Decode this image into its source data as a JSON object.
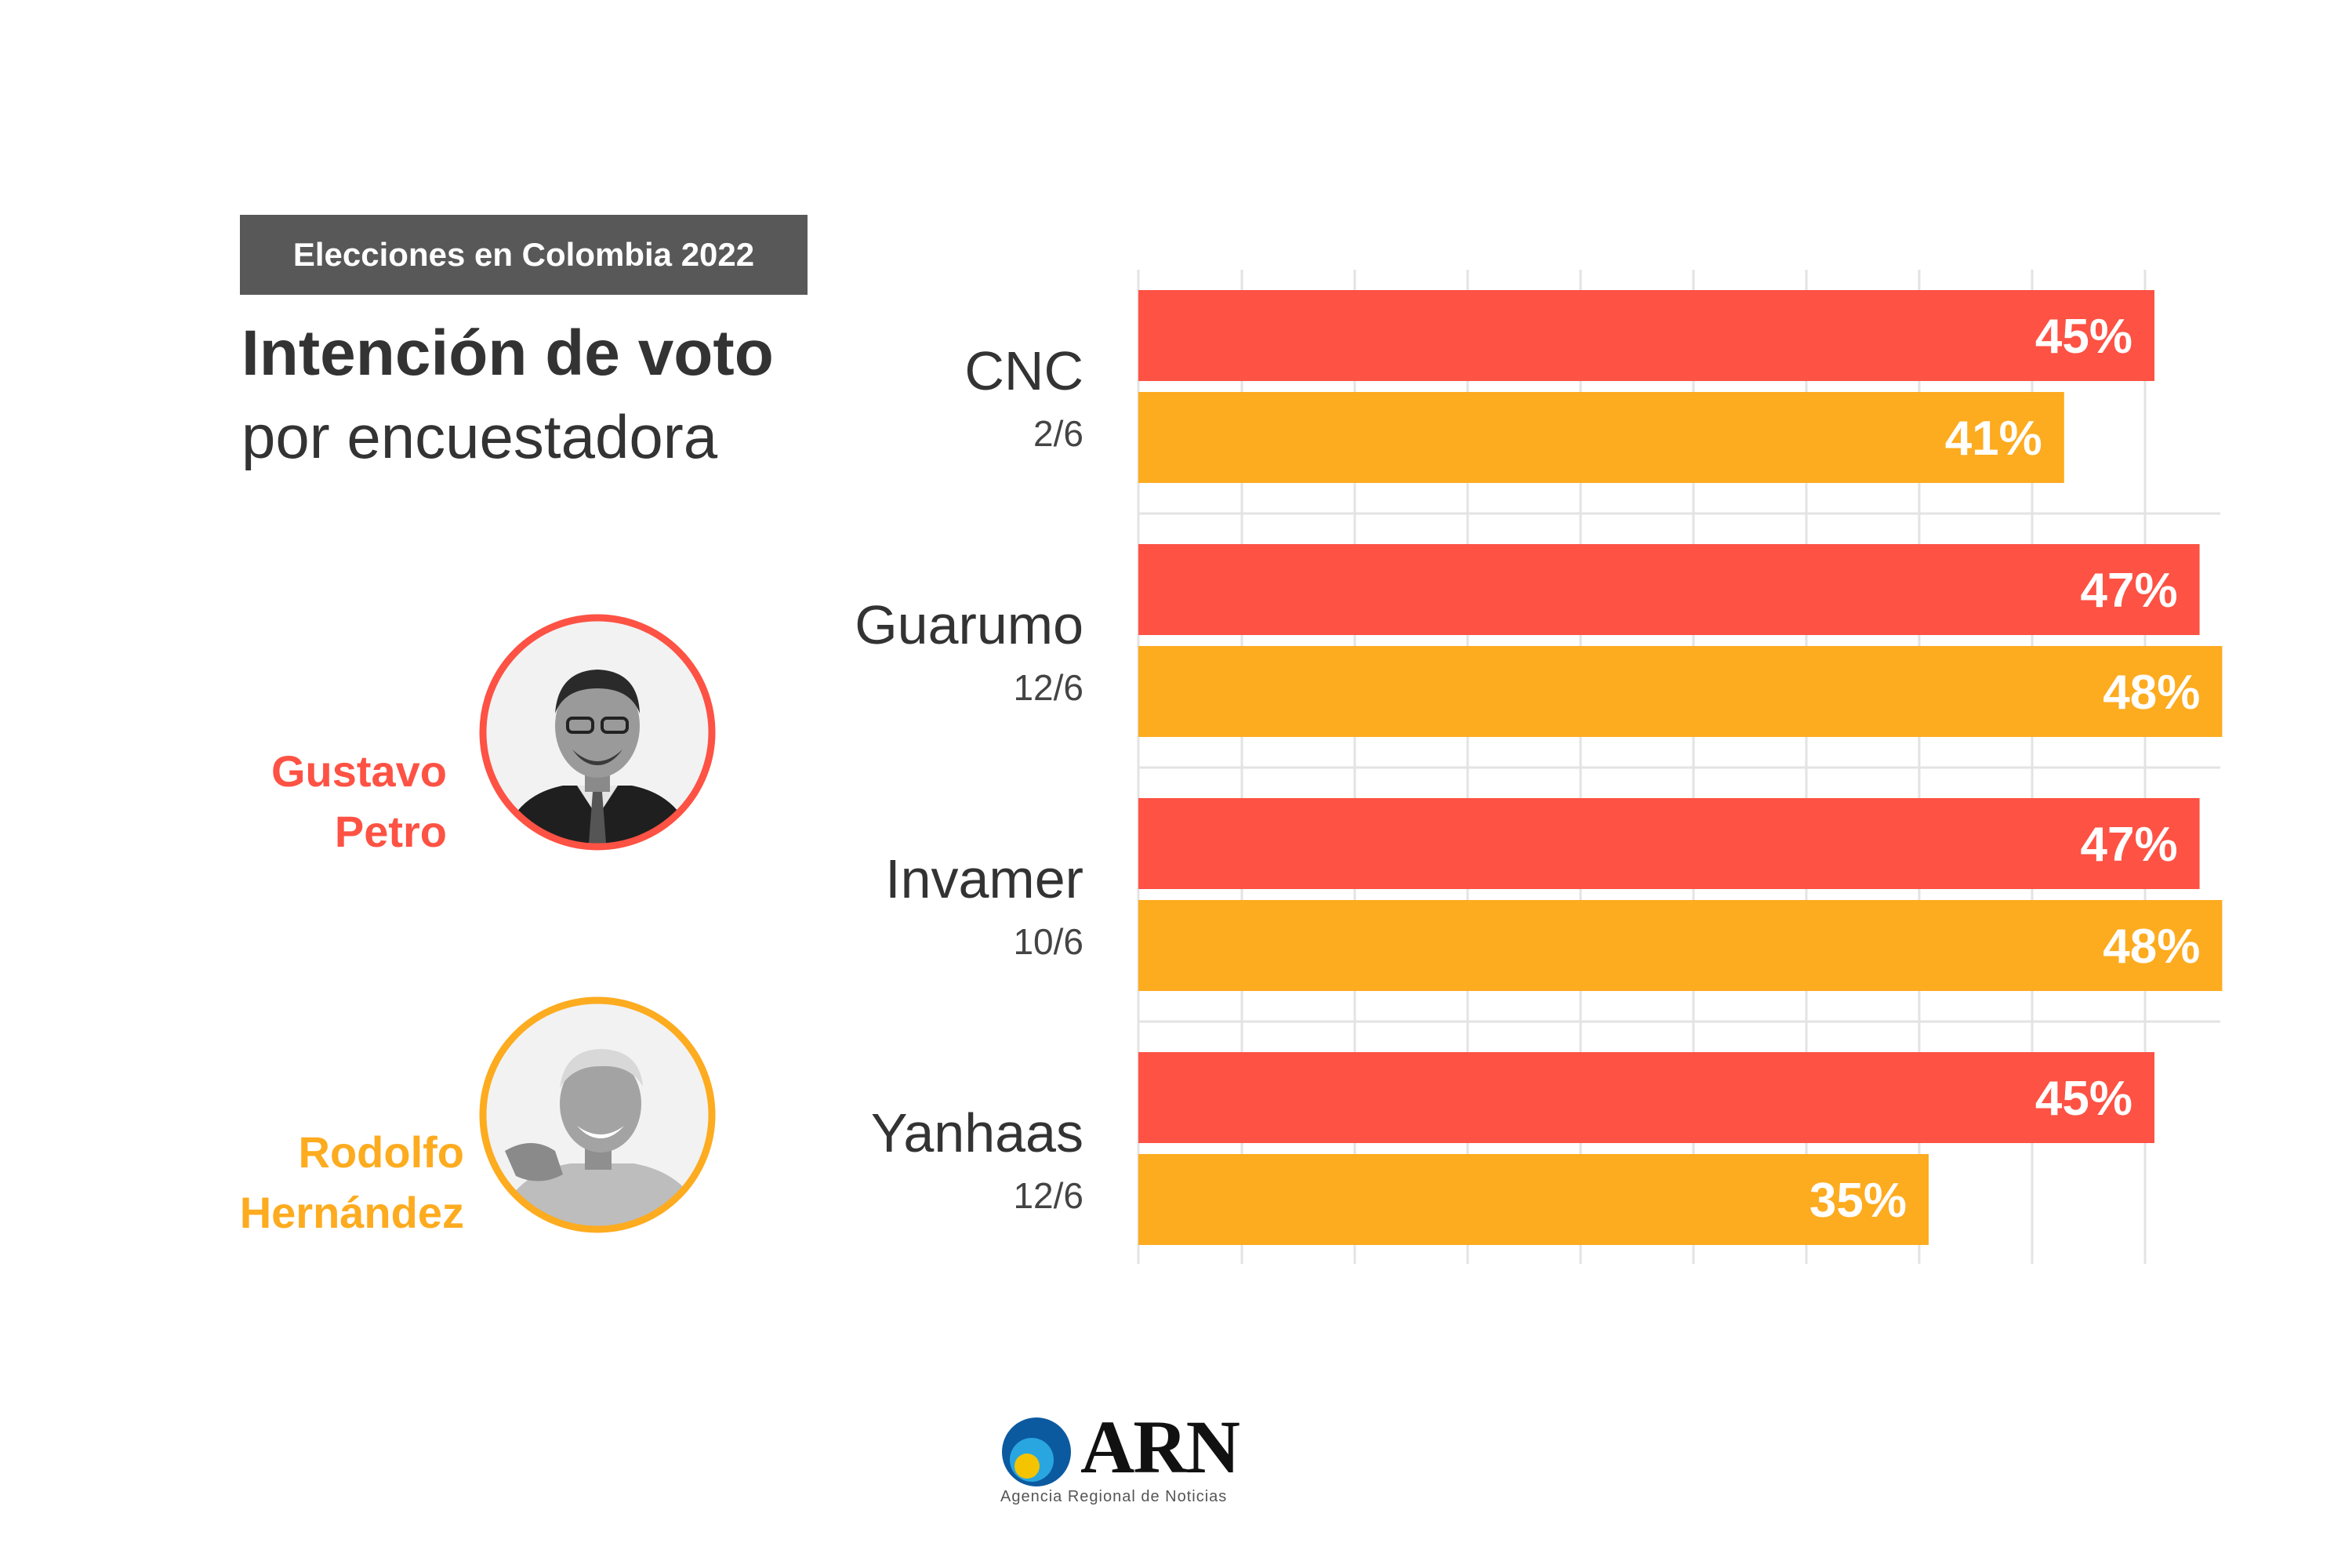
{
  "header": {
    "badge": "Elecciones en Colombia 2022",
    "title": "Intención de voto",
    "subtitle": "por encuestadora"
  },
  "candidates": [
    {
      "first": "Gustavo",
      "last": "Petro",
      "color": "#fd5244"
    },
    {
      "first": "Rodolfo",
      "last": "Hernández",
      "color": "#fdab1f"
    }
  ],
  "chart_data": {
    "type": "bar",
    "orientation": "horizontal",
    "categories": [
      {
        "name": "CNC",
        "date": "2/6"
      },
      {
        "name": "Guarumo",
        "date": "12/6"
      },
      {
        "name": "Invamer",
        "date": "10/6"
      },
      {
        "name": "Yanhaas",
        "date": "12/6"
      }
    ],
    "series": [
      {
        "name": "Gustavo Petro",
        "color": "#fd5244",
        "values": [
          45,
          47,
          47,
          45
        ],
        "labels": [
          "45%",
          "47%",
          "47%",
          "45%"
        ]
      },
      {
        "name": "Rodolfo Hernández",
        "color": "#fdab1f",
        "values": [
          41,
          48,
          48,
          35
        ],
        "labels": [
          "41%",
          "48%",
          "48%",
          "35%"
        ]
      }
    ],
    "unit": "%",
    "grid": true
  },
  "footer": {
    "logo_text": "ARN",
    "logo_sub": "Agencia Regional de Noticias",
    "logo_colors": [
      "#0b5aa0",
      "#29a6e0",
      "#f5c400"
    ]
  }
}
